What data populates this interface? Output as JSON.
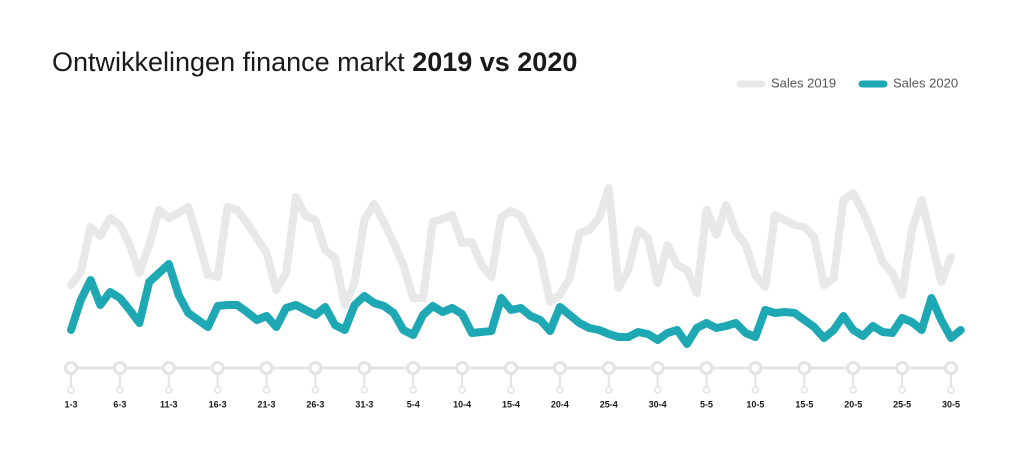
{
  "chart_data": {
    "type": "line",
    "title": "Ontwikkelingen finance markt",
    "title_highlight": "2019 vs 2020",
    "categories": [
      "1-3",
      null,
      null,
      null,
      null,
      "6-3",
      null,
      null,
      null,
      null,
      "11-3",
      null,
      null,
      null,
      null,
      "16-3",
      null,
      null,
      null,
      null,
      "21-3",
      null,
      null,
      null,
      null,
      "26-3",
      null,
      null,
      null,
      null,
      "31-3",
      null,
      null,
      null,
      null,
      "5-4",
      null,
      null,
      null,
      null,
      "10-4",
      null,
      null,
      null,
      null,
      "15-4",
      null,
      null,
      null,
      null,
      "20-4",
      null,
      null,
      null,
      null,
      "25-4",
      null,
      null,
      null,
      null,
      "30-4",
      null,
      null,
      null,
      null,
      "5-5",
      null,
      null,
      null,
      null,
      "10-5",
      null,
      null,
      null,
      null,
      "15-5",
      null,
      null,
      null,
      null,
      "20-5",
      null,
      null,
      null,
      null,
      "25-5",
      null,
      null,
      null,
      null,
      "30-5",
      null
    ],
    "series": [
      {
        "name": "Sales 2019",
        "color": "#e8e8e8",
        "values": [
          95,
          108,
          153,
          144,
          162,
          155,
          135,
          107,
          135,
          170,
          162,
          167,
          173,
          140,
          105,
          103,
          173,
          170,
          157,
          142,
          127,
          90,
          107,
          183,
          164,
          160,
          130,
          122,
          75,
          97,
          160,
          176,
          158,
          137,
          115,
          82,
          82,
          158,
          161,
          165,
          137,
          138,
          115,
          103,
          163,
          169,
          164,
          143,
          124,
          78,
          85,
          102,
          147,
          150,
          162,
          192,
          92,
          110,
          150,
          142,
          97,
          135,
          115,
          110,
          87,
          170,
          145,
          175,
          148,
          135,
          105,
          93,
          165,
          160,
          155,
          153,
          143,
          95,
          102,
          180,
          187,
          168,
          145,
          118,
          107,
          85,
          150,
          180,
          140,
          98,
          123,
          null
        ]
      },
      {
        "name": "Sales 2020",
        "color": "#1ea8b4",
        "values": [
          50,
          80,
          100,
          75,
          88,
          82,
          70,
          57,
          98,
          107,
          116,
          85,
          67,
          60,
          53,
          74,
          75,
          75,
          68,
          60,
          64,
          53,
          72,
          75,
          70,
          65,
          73,
          55,
          50,
          75,
          84,
          77,
          74,
          67,
          50,
          45,
          65,
          74,
          68,
          72,
          66,
          47,
          48,
          49,
          82,
          70,
          72,
          64,
          60,
          49,
          73,
          65,
          57,
          52,
          50,
          46,
          43,
          43,
          48,
          46,
          40,
          47,
          50,
          36,
          52,
          57,
          52,
          54,
          57,
          47,
          43,
          70,
          67,
          68,
          67,
          60,
          53,
          42,
          50,
          64,
          50,
          44,
          54,
          48,
          47,
          62,
          58,
          50,
          82,
          60,
          42,
          50
        ]
      }
    ],
    "ylim": [
      0,
      200
    ],
    "legend": "top-right"
  }
}
